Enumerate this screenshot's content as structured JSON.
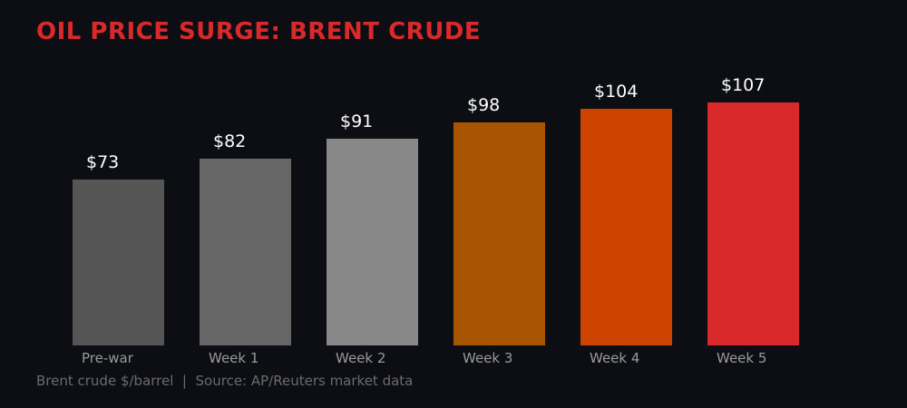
{
  "header": {
    "title": "OIL PRICE SURGE: BRENT CRUDE"
  },
  "footer": {
    "note": "Brent crude $/barrel  |  Source: AP/Reuters market data"
  },
  "bars": [
    {
      "label": "Pre-war",
      "value_label": "$73",
      "color": "#555555"
    },
    {
      "label": "Week 1",
      "value_label": "$82",
      "color": "#666666"
    },
    {
      "label": "Week 2",
      "value_label": "$91",
      "color": "#888888"
    },
    {
      "label": "Week 3",
      "value_label": "$98",
      "color": "#a85500"
    },
    {
      "label": "Week 4",
      "value_label": "$104",
      "color": "#cc4400"
    },
    {
      "label": "Week 5",
      "value_label": "$107",
      "color": "#d9292b"
    }
  ],
  "chart_data": {
    "type": "bar",
    "title": "OIL PRICE SURGE: BRENT CRUDE",
    "categories": [
      "Pre-war",
      "Week 1",
      "Week 2",
      "Week 3",
      "Week 4",
      "Week 5"
    ],
    "values": [
      73,
      82,
      91,
      98,
      104,
      107
    ],
    "xlabel": "",
    "ylabel": "Brent crude $/barrel",
    "ylim": [
      0,
      110
    ],
    "grid": false,
    "legend": null,
    "annotations": [
      "Brent crude $/barrel  |  Source: AP/Reuters market data"
    ]
  }
}
